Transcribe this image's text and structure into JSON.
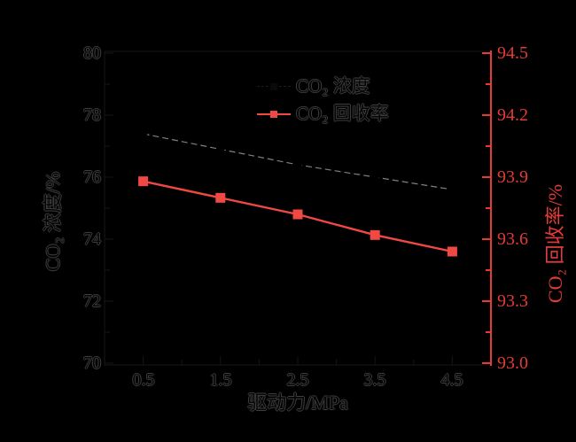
{
  "chart_data": {
    "type": "line",
    "title": "",
    "x_label": "驱动力/MPa",
    "x_range": [
      0,
      5
    ],
    "x_ticks": [
      "0.5",
      "1.5",
      "2.5",
      "3.5",
      "4.5"
    ],
    "y_left": {
      "label": "CO₂ 浓度/%",
      "range": [
        70,
        80
      ],
      "ticks": [
        "80",
        "78",
        "76",
        "74",
        "72",
        "70"
      ]
    },
    "y_right": {
      "label": "CO₂ 回收率/%",
      "range": [
        93.0,
        94.5
      ],
      "ticks": [
        "94.5",
        "94.2",
        "93.9",
        "93.6",
        "93.3",
        "93.0"
      ]
    },
    "series": [
      {
        "name": "CO₂ 浓度",
        "axis": "left",
        "line_style": "dashed",
        "color": "#808080",
        "marker": "square",
        "marker_color": "#000000",
        "x": [
          0.5,
          1.5,
          2.5,
          3.5,
          4.5
        ],
        "values": [
          77.4,
          76.9,
          76.4,
          76.0,
          75.6
        ]
      },
      {
        "name": "CO₂ 回收率",
        "axis": "right",
        "line_style": "solid",
        "color": "#f04843",
        "marker": "square",
        "marker_color": "#f04843",
        "x": [
          0.5,
          1.5,
          2.5,
          3.5,
          4.5
        ],
        "values": [
          93.88,
          93.8,
          93.72,
          93.62,
          93.54
        ]
      }
    ],
    "legend": {
      "position": "upper-center",
      "items": [
        {
          "label": "CO₂ 浓度"
        },
        {
          "label": "CO₂ 回收率"
        }
      ]
    },
    "grid": false,
    "colors": {
      "background": "#000000",
      "right_axis": "#e43b36",
      "series_red": "#f04843",
      "dashed_line_gray": "#808080",
      "ink_outline": "#3e3e3e"
    }
  }
}
